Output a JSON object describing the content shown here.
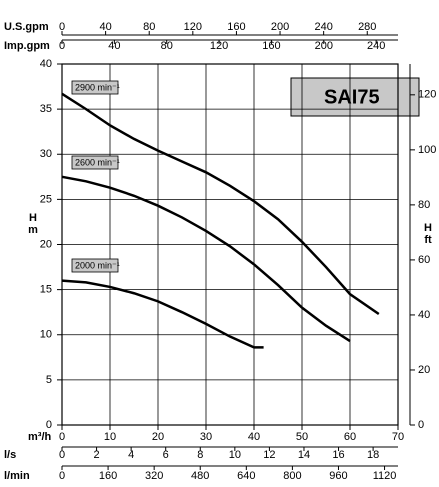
{
  "chart_data": {
    "type": "line",
    "title": "SAI75",
    "xlabel": "m³/h",
    "xlim": [
      0,
      70
    ],
    "xticks": [
      0,
      10,
      20,
      30,
      40,
      50,
      60,
      70
    ],
    "ylabel": {
      "symbol": "H",
      "unit": "m"
    },
    "ylim": [
      0,
      40
    ],
    "yticks": [
      0,
      5,
      10,
      15,
      20,
      25,
      30,
      35,
      40
    ],
    "y2label": {
      "symbol": "H",
      "unit": "ft"
    },
    "y2lim": [
      0,
      131.2
    ],
    "y2ticks": [
      0,
      20,
      40,
      60,
      80,
      100,
      120
    ],
    "top_axes": [
      {
        "label": "U.S.gpm",
        "xlim": [
          0,
          308.2
        ],
        "xticks": [
          0,
          40,
          80,
          120,
          160,
          200,
          240,
          280
        ]
      },
      {
        "label": "Imp.gpm",
        "xlim": [
          0,
          256.7
        ],
        "xticks": [
          0,
          40,
          80,
          120,
          160,
          200,
          240
        ]
      }
    ],
    "bottom_axes": [
      {
        "label": "l/s",
        "xlim": [
          0,
          19.44
        ],
        "xticks": [
          0,
          2,
          4,
          6,
          8,
          10,
          12,
          14,
          16,
          18
        ]
      },
      {
        "label": "l/min",
        "xlim": [
          0,
          1166.7
        ],
        "xticks": [
          0,
          160,
          320,
          480,
          640,
          800,
          960,
          1120
        ]
      }
    ],
    "grid": true,
    "series": [
      {
        "name": "2900 min⁻¹",
        "color": "#000000",
        "x": [
          0,
          5,
          10,
          15,
          20,
          25,
          30,
          35,
          40,
          45,
          50,
          55,
          60,
          66
        ],
        "values": [
          36.7,
          35,
          33.2,
          31.7,
          30.4,
          29.2,
          28,
          26.5,
          24.8,
          22.8,
          20.3,
          17.5,
          14.5,
          12.3
        ]
      },
      {
        "name": "2600 min⁻¹",
        "color": "#000000",
        "x": [
          0,
          5,
          10,
          15,
          20,
          25,
          30,
          35,
          40,
          45,
          50,
          55,
          60
        ],
        "values": [
          27.5,
          27,
          26.3,
          25.4,
          24.3,
          23,
          21.5,
          19.8,
          17.8,
          15.5,
          13,
          11,
          9.3
        ]
      },
      {
        "name": "2000 min⁻¹",
        "color": "#000000",
        "x": [
          0,
          5,
          10,
          15,
          20,
          25,
          30,
          35,
          40,
          42
        ],
        "values": [
          16,
          15.8,
          15.3,
          14.6,
          13.7,
          12.5,
          11.2,
          9.8,
          8.6,
          8.6
        ]
      }
    ]
  }
}
